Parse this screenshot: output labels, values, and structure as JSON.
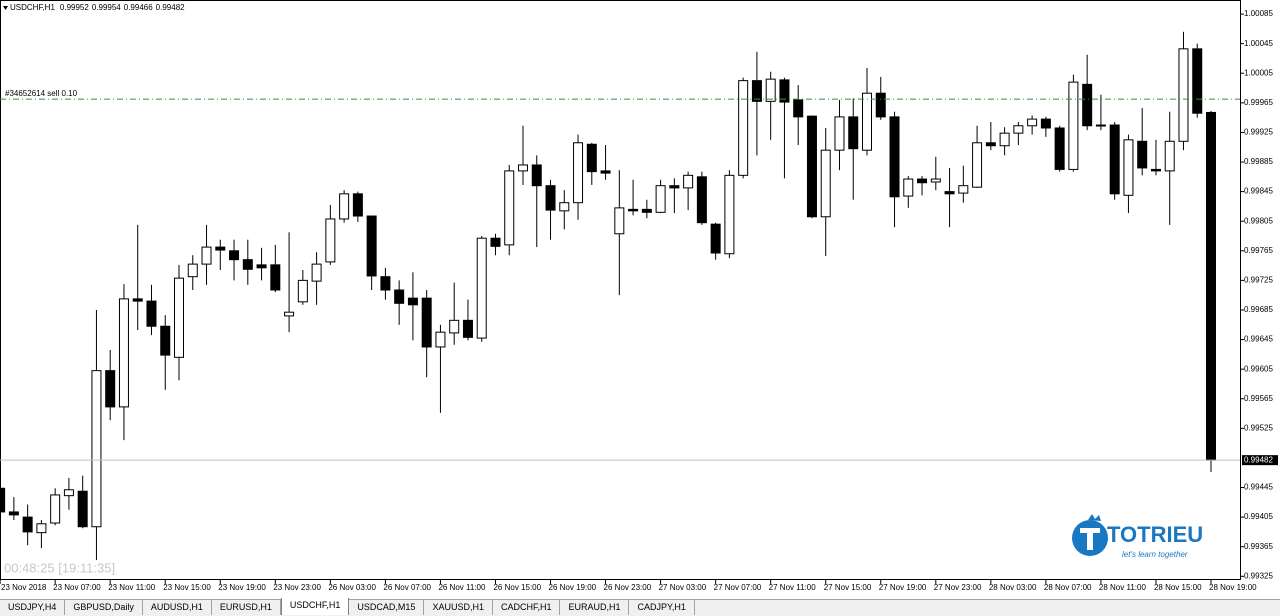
{
  "chart_data": {
    "type": "candlestick",
    "symbol": "USDCHF,H1",
    "up_color": "#ffffff",
    "down_color": "#000000",
    "wick_color": "#000000",
    "categories": [
      "23 Nov 2018",
      null,
      null,
      null,
      "23 Nov 07:00",
      null,
      null,
      null,
      "23 Nov 11:00",
      null,
      null,
      null,
      "23 Nov 15:00",
      null,
      null,
      null,
      "23 Nov 19:00",
      null,
      null,
      null,
      "23 Nov 23:00",
      null,
      null,
      null,
      "26 Nov 03:00",
      null,
      null,
      null,
      "26 Nov 07:00",
      null,
      null,
      null,
      "26 Nov 11:00",
      null,
      null,
      null,
      "26 Nov 15:00",
      null,
      null,
      null,
      "26 Nov 19:00",
      null,
      null,
      null,
      "26 Nov 23:00",
      null,
      null,
      null,
      "27 Nov 03:00",
      null,
      null,
      null,
      "27 Nov 07:00",
      null,
      null,
      null,
      "27 Nov 11:00",
      null,
      null,
      null,
      "27 Nov 15:00",
      null,
      null,
      null,
      "27 Nov 19:00",
      null,
      null,
      null,
      "27 Nov 23:00",
      null,
      null,
      null,
      "28 Nov 03:00",
      null,
      null,
      null,
      "28 Nov 07:00",
      null,
      null,
      null,
      "28 Nov 11:00",
      null,
      null,
      null,
      "28 Nov 15:00",
      null,
      null,
      null,
      "28 Nov 19:00"
    ],
    "open": [
      0.99444,
      0.99412,
      0.99405,
      0.99384,
      0.99397,
      0.99434,
      0.9944,
      0.99392,
      0.99603,
      0.99554,
      0.997,
      0.99697,
      0.99663,
      0.99621,
      0.9973,
      0.99747,
      0.9977,
      0.99765,
      0.99753,
      0.99746,
      0.99746,
      0.99677,
      0.99696,
      0.99724,
      0.9975,
      0.99808,
      0.99842,
      0.99812,
      0.9973,
      0.99712,
      0.99701,
      0.99701,
      0.99635,
      0.99654,
      0.99671,
      0.99647,
      0.99782,
      0.99773,
      0.99873,
      0.99881,
      0.99853,
      0.99819,
      0.9983,
      0.99909,
      0.99873,
      0.99788,
      0.99821,
      0.99821,
      0.99817,
      0.99853,
      0.9985,
      0.99865,
      0.99801,
      0.99761,
      0.99867,
      0.99995,
      0.99967,
      0.99996,
      0.99969,
      0.99947,
      0.99811,
      0.99901,
      0.99946,
      0.99901,
      0.99978,
      0.99946,
      0.99839,
      0.99862,
      0.99858,
      0.99845,
      0.99843,
      0.99851,
      0.99911,
      0.99907,
      0.99924,
      0.99934,
      0.99943,
      0.99931,
      0.99875,
      0.9999,
      0.99935,
      0.99935,
      0.9984,
      0.99913,
      0.99875,
      0.99873,
      0.99913,
      1.00038,
      0.99952
    ],
    "high": [
      0.99455,
      0.99432,
      0.99422,
      0.99401,
      0.99444,
      0.99458,
      0.99461,
      0.99685,
      0.99631,
      0.9972,
      0.998,
      0.99719,
      0.99678,
      0.99746,
      0.99759,
      0.998,
      0.9978,
      0.9978,
      0.9978,
      0.99769,
      0.99773,
      0.9979,
      0.99739,
      0.99763,
      0.99827,
      0.99847,
      0.99845,
      0.99812,
      0.99742,
      0.99725,
      0.99736,
      0.99712,
      0.99665,
      0.99722,
      0.99699,
      0.99785,
      0.99788,
      0.99881,
      0.99934,
      0.99894,
      0.99861,
      0.99847,
      0.99922,
      0.99911,
      0.99908,
      0.99874,
      0.99861,
      0.99834,
      0.99861,
      0.99863,
      0.99872,
      0.99872,
      0.99803,
      0.99874,
      0.99999,
      1.00034,
      1.00007,
      0.99999,
      0.99989,
      0.99948,
      0.99931,
      0.99969,
      0.99971,
      1.00012,
      1.0,
      0.99953,
      0.99866,
      0.99866,
      0.99892,
      0.99877,
      0.9988,
      0.99934,
      0.99939,
      0.99932,
      0.99939,
      0.99948,
      0.99946,
      0.99934,
      1.00003,
      1.0003,
      0.99976,
      0.99939,
      0.99922,
      0.99958,
      0.99915,
      0.99953,
      1.00061,
      1.00045,
      0.99954
    ],
    "low": [
      0.99408,
      0.99401,
      0.99367,
      0.99363,
      0.99394,
      0.99415,
      0.9939,
      0.99347,
      0.99536,
      0.99509,
      0.99658,
      0.99651,
      0.99577,
      0.9959,
      0.99712,
      0.99719,
      0.99739,
      0.99725,
      0.99719,
      0.99725,
      0.99709,
      0.99655,
      0.99692,
      0.99692,
      0.99746,
      0.99803,
      0.99804,
      0.99712,
      0.99699,
      0.99665,
      0.99644,
      0.99594,
      0.99546,
      0.99638,
      0.99644,
      0.99642,
      0.99759,
      0.99759,
      0.99854,
      0.9977,
      0.9978,
      0.99794,
      0.99807,
      0.99854,
      0.99861,
      0.99705,
      0.99813,
      0.99809,
      0.99816,
      0.99816,
      0.9982,
      0.998,
      0.99753,
      0.99755,
      0.99863,
      0.99894,
      0.99915,
      0.99863,
      0.99908,
      0.99809,
      0.99758,
      0.99874,
      0.99834,
      0.99894,
      0.99942,
      0.99797,
      0.99823,
      0.9984,
      0.99847,
      0.99797,
      0.9983,
      0.9985,
      0.99901,
      0.99894,
      0.99908,
      0.99922,
      0.99919,
      0.99872,
      0.99872,
      0.99928,
      0.99928,
      0.99834,
      0.99816,
      0.99867,
      0.99867,
      0.998,
      0.99901,
      0.99945,
      0.99466
    ],
    "close": [
      0.99412,
      0.99408,
      0.99385,
      0.99396,
      0.99435,
      0.99442,
      0.99392,
      0.99603,
      0.99554,
      0.997,
      0.99697,
      0.99663,
      0.99624,
      0.99728,
      0.99747,
      0.9977,
      0.99766,
      0.99753,
      0.9974,
      0.99742,
      0.99712,
      0.99682,
      0.99725,
      0.99747,
      0.99808,
      0.99842,
      0.99812,
      0.99731,
      0.99712,
      0.99694,
      0.99692,
      0.99635,
      0.99655,
      0.99671,
      0.99648,
      0.99782,
      0.99771,
      0.99873,
      0.99881,
      0.99853,
      0.9982,
      0.9983,
      0.99911,
      0.99872,
      0.9987,
      0.99823,
      0.99819,
      0.99817,
      0.99853,
      0.9985,
      0.99867,
      0.99803,
      0.99762,
      0.99867,
      0.99995,
      0.99967,
      0.99997,
      0.99966,
      0.99946,
      0.99811,
      0.99901,
      0.99946,
      0.99903,
      0.99978,
      0.99946,
      0.99838,
      0.99862,
      0.99857,
      0.99862,
      0.99842,
      0.99853,
      0.99911,
      0.99907,
      0.99924,
      0.99934,
      0.99943,
      0.99931,
      0.99875,
      0.99993,
      0.99934,
      0.99934,
      0.99842,
      0.99915,
      0.99877,
      0.99873,
      0.99913,
      1.00038,
      0.99951,
      0.99482
    ],
    "ylim": [
      0.9932,
      1.00104
    ],
    "yticks": [
      1.00085,
      1.00045,
      1.00005,
      0.99965,
      0.99925,
      0.99885,
      0.99845,
      0.99805,
      0.99765,
      0.99725,
      0.99685,
      0.99645,
      0.99605,
      0.99565,
      0.99525,
      0.99445,
      0.99405,
      0.99365,
      0.99325
    ],
    "order_line": {
      "label": "#34652614 sell 0.10",
      "value": 0.9997,
      "color": "#3c8c3c"
    },
    "price_line_color": "#c0c0c0"
  },
  "timer": "00:48:25 [19:11:35]",
  "watermark": {
    "title": "TOTRIEU",
    "tagline": "let's learn together"
  },
  "tabs": [
    "USDJPY,H4",
    "GBPUSD,Daily",
    "AUDUSD,H1",
    "EURUSD,H1",
    "USDCHF,H1",
    "USDCAD,M15",
    "XAUUSD,H1",
    "CADCHF,H1",
    "EURAUD,H1",
    "CADJPY,H1"
  ],
  "active_tab": 4
}
